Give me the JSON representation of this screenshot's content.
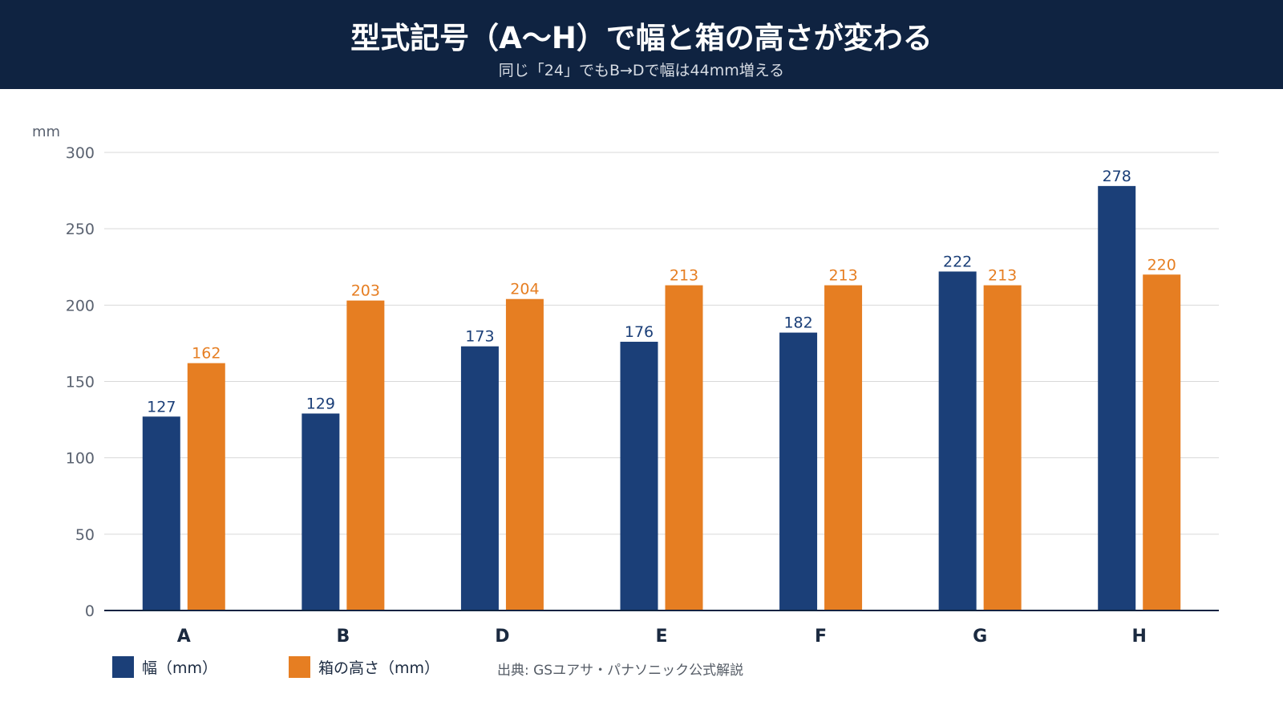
{
  "header": {
    "title": "型式記号（A〜H）で幅と箱の高さが変わる",
    "subtitle": "同じ「24」でもB→Dで幅は44mm増える"
  },
  "colors": {
    "header_bg": "#0f2341",
    "width_series": "#1b3f78",
    "height_series": "#e67e22",
    "grid": "#d9d9d9",
    "axis": "#0f2341"
  },
  "chart_data": {
    "type": "bar",
    "categories": [
      "A",
      "B",
      "D",
      "E",
      "F",
      "G",
      "H"
    ],
    "series": [
      {
        "name": "幅（mm）",
        "values": [
          127,
          129,
          173,
          176,
          182,
          222,
          278
        ]
      },
      {
        "name": "箱の高さ（mm）",
        "values": [
          162,
          203,
          204,
          213,
          213,
          213,
          220
        ]
      }
    ],
    "ylabel": "mm",
    "ylim": [
      0,
      300
    ],
    "yticks": [
      0,
      50,
      100,
      150,
      200,
      250,
      300
    ],
    "grid": true,
    "legend_position": "bottom-left",
    "data_labels": true
  },
  "source": "出典: GSユアサ・パナソニック公式解説"
}
